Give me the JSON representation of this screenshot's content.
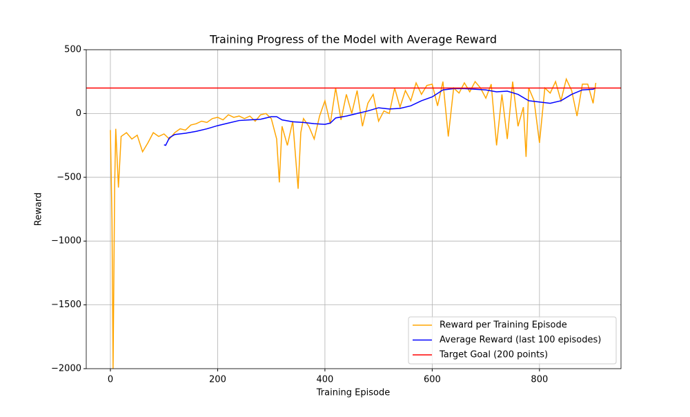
{
  "chart_data": {
    "type": "line",
    "title": "Training Progress of the Model with Average Reward",
    "x_label": "Training Episode",
    "y_label": "Reward",
    "xlim": [
      -45,
      952
    ],
    "ylim": [
      -2000,
      500
    ],
    "xticks": [
      0,
      200,
      400,
      600,
      800
    ],
    "yticks": [
      {
        "value": -2000,
        "label": "−2000"
      },
      {
        "value": -1500,
        "label": "−1500"
      },
      {
        "value": -1000,
        "label": "−1000"
      },
      {
        "value": -500,
        "label": "−500"
      },
      0,
      500
    ],
    "grid": true,
    "legend": "lower right",
    "series": [
      {
        "name": "Reward per Training Episode",
        "color": "#ffa500",
        "x": [
          0,
          3,
          5,
          8,
          10,
          15,
          20,
          30,
          40,
          50,
          60,
          70,
          80,
          90,
          100,
          110,
          120,
          130,
          140,
          150,
          160,
          170,
          180,
          190,
          200,
          210,
          220,
          230,
          240,
          250,
          260,
          270,
          280,
          290,
          300,
          310,
          315,
          320,
          330,
          340,
          350,
          355,
          360,
          370,
          380,
          390,
          400,
          410,
          420,
          430,
          440,
          450,
          460,
          470,
          480,
          490,
          500,
          510,
          520,
          530,
          540,
          550,
          560,
          570,
          580,
          590,
          600,
          610,
          620,
          630,
          640,
          650,
          660,
          670,
          680,
          690,
          700,
          710,
          720,
          730,
          740,
          750,
          760,
          770,
          775,
          780,
          790,
          800,
          810,
          820,
          830,
          840,
          850,
          860,
          870,
          880,
          890,
          900,
          905
        ],
        "values": [
          -130,
          -830,
          -2000,
          -560,
          -120,
          -580,
          -180,
          -150,
          -200,
          -170,
          -300,
          -230,
          -150,
          -180,
          -160,
          -200,
          -150,
          -120,
          -130,
          -90,
          -80,
          -60,
          -70,
          -40,
          -30,
          -50,
          -10,
          -30,
          -20,
          -40,
          -20,
          -60,
          -10,
          0,
          -40,
          -200,
          -540,
          -100,
          -250,
          -60,
          -590,
          -150,
          -40,
          -100,
          -200,
          -20,
          100,
          -80,
          200,
          -50,
          150,
          0,
          180,
          -100,
          80,
          150,
          -60,
          20,
          0,
          200,
          50,
          180,
          100,
          240,
          150,
          220,
          230,
          60,
          250,
          -180,
          200,
          160,
          240,
          170,
          250,
          200,
          120,
          230,
          -250,
          150,
          -200,
          250,
          -100,
          50,
          -340,
          200,
          100,
          -230,
          200,
          160,
          250,
          100,
          270,
          180,
          -20,
          230,
          230,
          80,
          240
        ]
      },
      {
        "name": "Average Reward (last 100 episodes)",
        "color": "#0000ff",
        "x": [
          100,
          103,
          110,
          120,
          140,
          160,
          180,
          200,
          220,
          240,
          260,
          280,
          300,
          310,
          320,
          340,
          360,
          380,
          400,
          410,
          420,
          440,
          460,
          480,
          500,
          520,
          540,
          560,
          580,
          600,
          620,
          640,
          660,
          680,
          700,
          720,
          740,
          760,
          780,
          800,
          820,
          840,
          860,
          880,
          900,
          905
        ],
        "values": [
          -245,
          -250,
          -190,
          -165,
          -155,
          -140,
          -120,
          -95,
          -75,
          -55,
          -50,
          -45,
          -25,
          -25,
          -50,
          -65,
          -70,
          -80,
          -85,
          -75,
          -35,
          -20,
          0,
          20,
          45,
          35,
          40,
          60,
          100,
          130,
          185,
          195,
          195,
          190,
          185,
          170,
          175,
          150,
          100,
          90,
          80,
          100,
          150,
          185,
          190,
          200
        ]
      },
      {
        "name": "Target Goal (200 points)",
        "color": "#ff0000",
        "hline": 200
      }
    ]
  }
}
